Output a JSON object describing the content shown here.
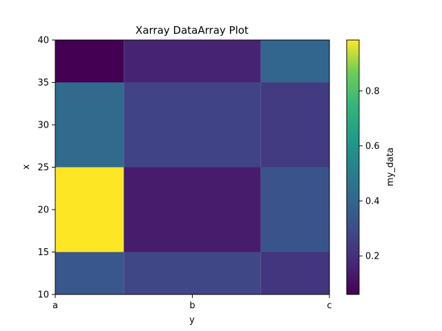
{
  "chart_data": {
    "type": "heatmap",
    "title": "Xarray DataArray Plot",
    "xlabel": "y",
    "ylabel": "x",
    "colorbar_label": "my_data",
    "colormap": "viridis",
    "x_ticks": [
      "a",
      "b",
      "c"
    ],
    "y_ticks": [
      10,
      15,
      20,
      25,
      30,
      35,
      40
    ],
    "colorbar_ticks": [
      0.2,
      0.4,
      0.6,
      0.8
    ],
    "ylim": [
      10,
      40
    ],
    "value_range": [
      0.06,
      0.985
    ],
    "x_edges": [
      -0.5,
      0.5,
      1.5,
      2.5
    ],
    "x_index_range": [
      0,
      2
    ],
    "y_edges": [
      10,
      15,
      25,
      35,
      40
    ],
    "values": [
      [
        0.34,
        0.28,
        0.22
      ],
      [
        0.985,
        0.14,
        0.33
      ],
      [
        0.42,
        0.27,
        0.24
      ],
      [
        0.06,
        0.16,
        0.4
      ]
    ],
    "grid": false
  }
}
